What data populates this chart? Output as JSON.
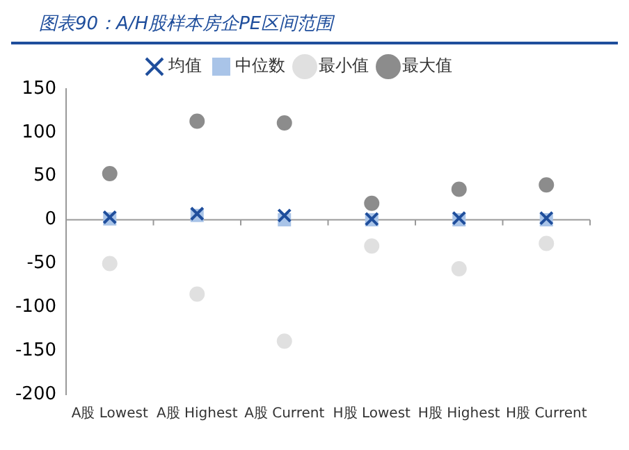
{
  "chart_data": {
    "type": "scatter",
    "title": "图表90：A/H股样本房企PE区间范围",
    "categories": [
      "A股 Lowest",
      "A股 Highest",
      "A股 Current",
      "H股 Lowest",
      "H股 Highest",
      "H股 Current"
    ],
    "series": [
      {
        "name": "均值",
        "color": "#1f4e9c",
        "marker": "cross",
        "values": [
          3,
          7,
          5,
          1,
          2,
          2
        ]
      },
      {
        "name": "中位数",
        "color": "#a9c4e8",
        "marker": "square",
        "values": [
          1,
          5,
          0,
          0,
          0,
          0
        ]
      },
      {
        "name": "最小值",
        "color": "#e0e0e0",
        "marker": "circle",
        "values": [
          -50,
          -85,
          -139,
          -30,
          -56,
          -27
        ]
      },
      {
        "name": "最大值",
        "color": "#8c8c8c",
        "marker": "circle",
        "values": [
          53,
          113,
          111,
          19,
          35,
          40
        ]
      }
    ],
    "ylim": [
      -200,
      150
    ],
    "yticks": [
      -200,
      -150,
      -100,
      -50,
      0,
      50,
      100,
      150
    ],
    "ref_lines": [
      {
        "axis": "y",
        "value": 0,
        "color": "#999999"
      }
    ],
    "grid": false,
    "legend": "top"
  }
}
